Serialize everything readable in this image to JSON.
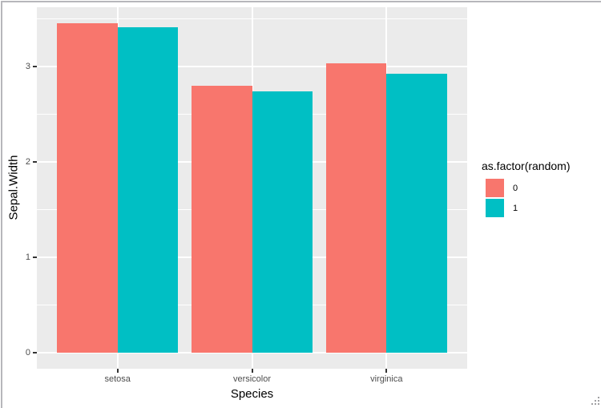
{
  "chart_data": {
    "type": "bar",
    "title": "",
    "xlabel": "Species",
    "ylabel": "Sepal.Width",
    "categories": [
      "setosa",
      "versicolor",
      "virginica"
    ],
    "series": [
      {
        "name": "0",
        "color": "#F8766D",
        "values": [
          3.45,
          2.8,
          3.03
        ]
      },
      {
        "name": "1",
        "color": "#00BFC4",
        "values": [
          3.41,
          2.74,
          2.92
        ]
      }
    ],
    "legend_title": "as.factor(random)",
    "legend_position": "right",
    "y_ticks": [
      0,
      1,
      2,
      3
    ],
    "y_minor_ticks": [
      0.5,
      1.5,
      2.5,
      3.5
    ],
    "ylim": [
      -0.17,
      3.62
    ],
    "grid": true,
    "panel_bg": "#EBEBEB",
    "grid_color": "#FFFFFF",
    "axis_text_color": "#4D4D4D",
    "bar_layout": "dodge"
  }
}
